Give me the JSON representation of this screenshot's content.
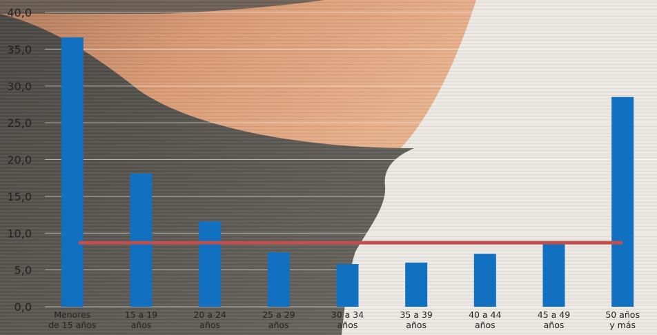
{
  "chart_data": {
    "type": "bar",
    "categories": [
      [
        "Menores",
        "de 15 años"
      ],
      [
        "15 a 19",
        "años"
      ],
      [
        "20 a 24",
        "años"
      ],
      [
        "25 a 29",
        "años"
      ],
      [
        "30 a 34",
        "años"
      ],
      [
        "35 a 39",
        "años"
      ],
      [
        "40 a 44",
        "años"
      ],
      [
        "45 a 49",
        "años"
      ],
      [
        "50 años",
        "y más"
      ]
    ],
    "values": [
      36.6,
      18.1,
      11.6,
      7.4,
      5.8,
      6.0,
      7.2,
      8.7,
      28.5
    ],
    "reference_line": {
      "value": 8.7,
      "color": "#c0504d"
    },
    "yticks": [
      "0,0",
      "5,0",
      "10,0",
      "15,0",
      "20,0",
      "25,0",
      "30,0",
      "35,0",
      "40,0"
    ],
    "ylim": [
      0,
      40
    ],
    "grid": true,
    "bar_color": "#1170c0"
  }
}
